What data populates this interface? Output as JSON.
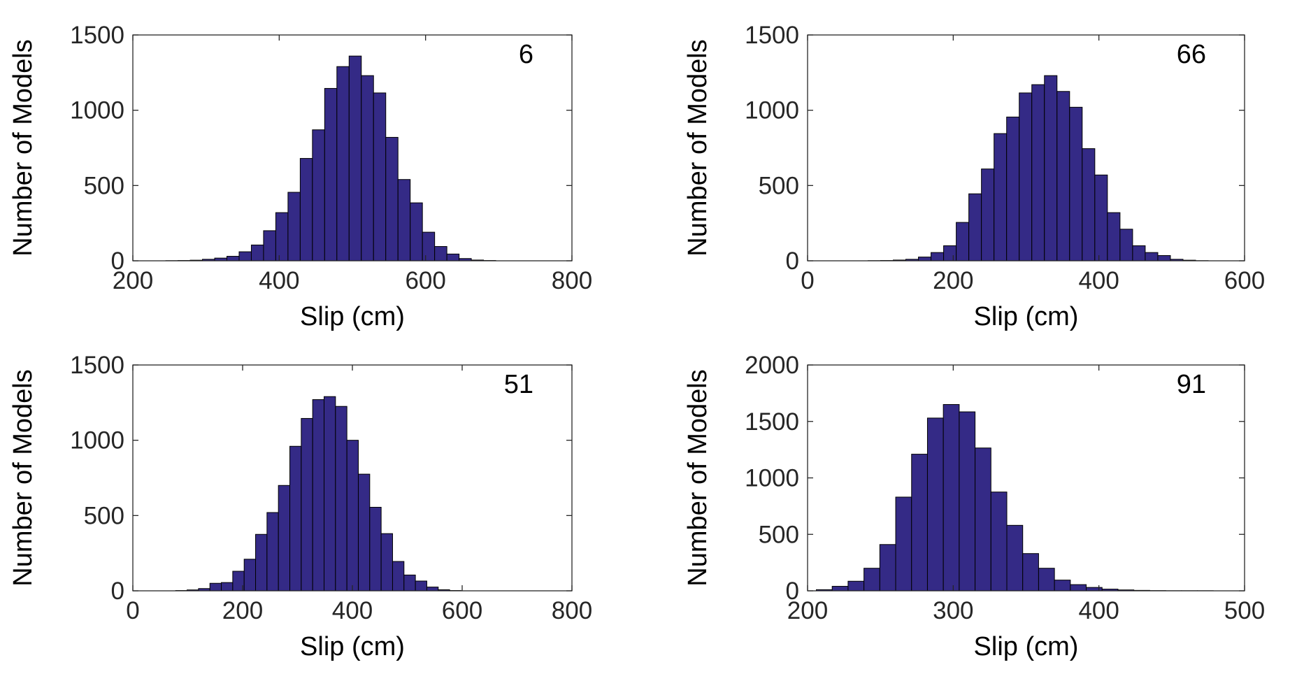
{
  "style": {
    "bar_color": "#342a86",
    "edge_color": "#000000",
    "axis_color": "#262626"
  },
  "chart_data": [
    {
      "type": "bar",
      "annotation": "6",
      "xlabel": "Slip (cm)",
      "ylabel": "Number of Models",
      "xlim": [
        200,
        800
      ],
      "ylim": [
        0,
        1500
      ],
      "xticks": [
        200,
        400,
        600,
        800
      ],
      "yticks": [
        0,
        500,
        1000,
        1500
      ],
      "grid": false,
      "bin_start": 245,
      "bin_width": 16.7,
      "values": [
        1,
        2,
        4,
        10,
        18,
        30,
        60,
        105,
        200,
        320,
        455,
        680,
        870,
        1145,
        1290,
        1360,
        1230,
        1115,
        820,
        540,
        385,
        190,
        95,
        45,
        15,
        5,
        2
      ]
    },
    {
      "type": "bar",
      "annotation": "66",
      "xlabel": "Slip (cm)",
      "ylabel": "Number of Models",
      "xlim": [
        0,
        600
      ],
      "ylim": [
        0,
        1500
      ],
      "xticks": [
        0,
        200,
        400,
        600
      ],
      "yticks": [
        0,
        500,
        1000,
        1500
      ],
      "grid": false,
      "bin_start": 83,
      "bin_width": 17.3,
      "values": [
        1,
        2,
        5,
        10,
        25,
        55,
        100,
        255,
        445,
        610,
        845,
        955,
        1115,
        1170,
        1230,
        1125,
        1020,
        745,
        570,
        320,
        210,
        100,
        55,
        35,
        10,
        4,
        1
      ]
    },
    {
      "type": "bar",
      "annotation": "51",
      "xlabel": "Slip (cm)",
      "ylabel": "Number of Models",
      "xlim": [
        0,
        800
      ],
      "ylim": [
        0,
        1500
      ],
      "xticks": [
        0,
        200,
        400,
        600,
        800
      ],
      "yticks": [
        0,
        500,
        1000,
        1500
      ],
      "grid": false,
      "bin_start": 78,
      "bin_width": 20.8,
      "values": [
        2,
        6,
        15,
        50,
        55,
        130,
        210,
        375,
        520,
        700,
        960,
        1145,
        1270,
        1290,
        1225,
        1000,
        775,
        555,
        380,
        195,
        105,
        65,
        25,
        7,
        2
      ]
    },
    {
      "type": "bar",
      "annotation": "91",
      "xlabel": "Slip (cm)",
      "ylabel": "Number of Models",
      "xlim": [
        200,
        500
      ],
      "ylim": [
        0,
        2000
      ],
      "xticks": [
        200,
        300,
        400,
        500
      ],
      "yticks": [
        0,
        500,
        1000,
        1500,
        2000
      ],
      "grid": false,
      "bin_start": 206,
      "bin_width": 10.9,
      "values": [
        10,
        40,
        85,
        200,
        410,
        830,
        1210,
        1530,
        1650,
        1585,
        1265,
        875,
        580,
        330,
        200,
        95,
        55,
        30,
        15,
        8,
        4,
        2,
        1,
        1,
        1
      ]
    }
  ]
}
